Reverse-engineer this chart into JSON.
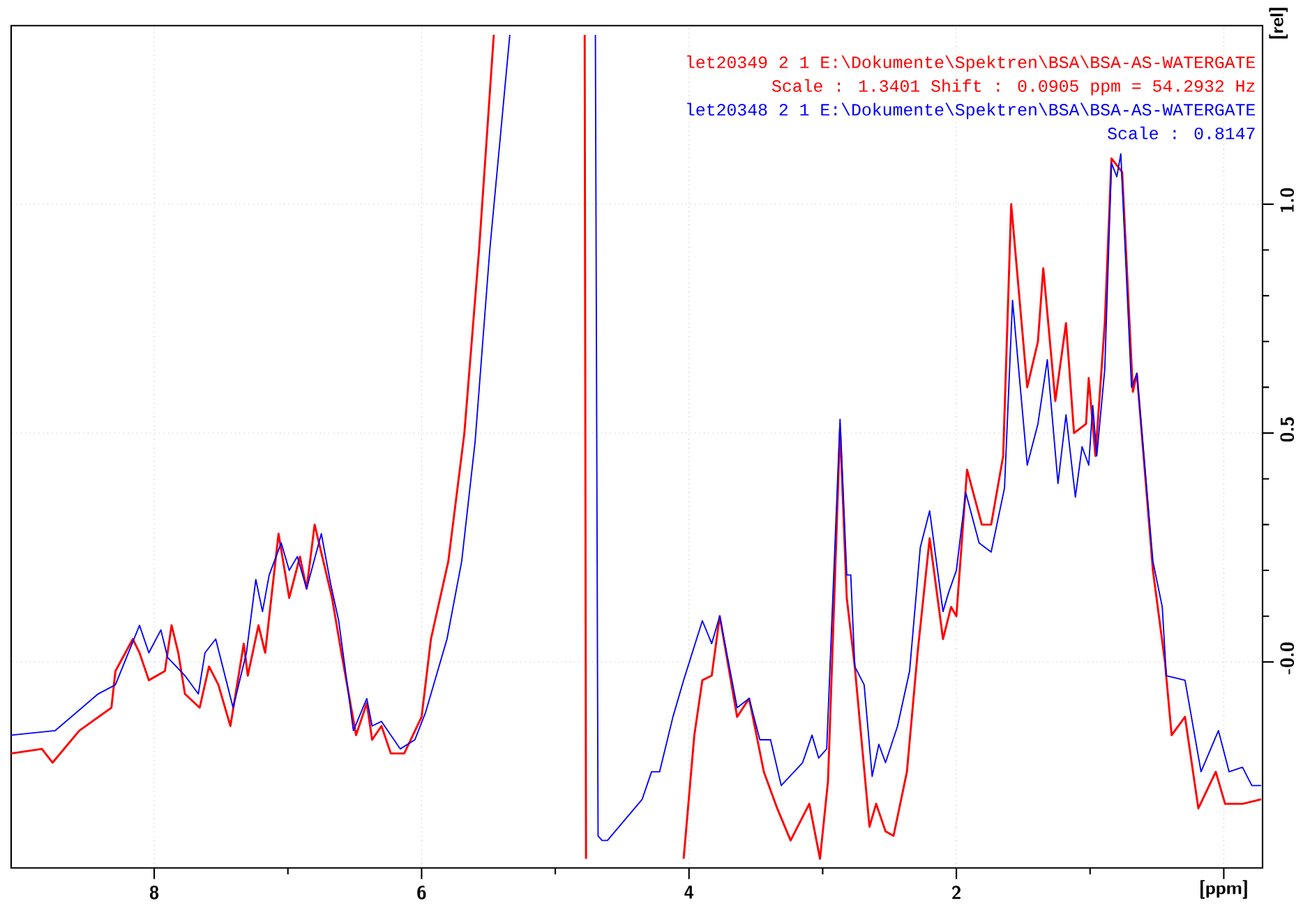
{
  "chart_data": {
    "type": "line",
    "xlabel": "[ppm]",
    "ylabel": "[rel]",
    "xlim": [
      9.07,
      -0.29
    ],
    "ylim": [
      -0.45,
      1.39
    ],
    "xticks": [
      8,
      6,
      4,
      2,
      {
        "value": 0,
        "label": null
      }
    ],
    "yticks": [
      {
        "value": 0,
        "label": "-0.0"
      },
      {
        "value": 0.5,
        "label": "0.5"
      },
      {
        "value": 1,
        "label": "1.0"
      }
    ],
    "grid": true,
    "legend": "top right",
    "line_style": "solid",
    "annotations": [
      "Scale : 1.3401 Shift : 0.0905 ppm = 54.2932 Hz",
      "Scale : 0.8147"
    ],
    "series": [
      {
        "name": "let20349  2  1  E:\\Dokumente\\Spektren\\BSA\\BSA-AS-WATERGATE",
        "color": "#ff0000",
        "x": [
          9.07,
          8.84,
          8.76,
          8.56,
          8.32,
          8.29,
          8.16,
          8.11,
          8.04,
          7.92,
          7.87,
          7.82,
          7.77,
          7.66,
          7.59,
          7.52,
          7.43,
          7.33,
          7.3,
          7.22,
          7.17,
          7.07,
          6.99,
          6.91,
          6.86,
          6.8,
          6.67,
          6.6,
          6.49,
          6.41,
          6.37,
          6.3,
          6.23,
          6.13,
          6.0,
          5.93,
          5.8,
          5.68,
          5.57,
          5.46,
          5.0,
          4.78,
          4.77,
          4.4,
          4.04,
          3.96,
          3.9,
          3.83,
          3.77,
          3.64,
          3.55,
          3.44,
          3.34,
          3.24,
          3.1,
          3.02,
          2.96,
          2.87,
          2.82,
          2.76,
          2.65,
          2.6,
          2.53,
          2.47,
          2.37,
          2.29,
          2.2,
          2.1,
          2.04,
          2.0,
          1.92,
          1.81,
          1.74,
          1.65,
          1.59,
          1.47,
          1.39,
          1.35,
          1.26,
          1.18,
          1.12,
          1.03,
          1.01,
          0.96,
          0.89,
          0.84,
          0.76,
          0.68,
          0.65,
          0.53,
          0.44,
          0.39,
          0.29,
          0.19,
          0.06,
          -0.01,
          -0.14,
          -0.28
        ],
        "values": [
          -0.2,
          -0.19,
          -0.22,
          -0.15,
          -0.1,
          -0.02,
          0.05,
          0.02,
          -0.04,
          -0.02,
          0.08,
          0.02,
          -0.07,
          -0.1,
          -0.01,
          -0.05,
          -0.14,
          0.04,
          -0.03,
          0.08,
          0.02,
          0.28,
          0.14,
          0.23,
          0.16,
          0.3,
          0.14,
          0.02,
          -0.16,
          -0.09,
          -0.17,
          -0.14,
          -0.2,
          -0.2,
          -0.12,
          0.05,
          0.22,
          0.5,
          0.9,
          1.37,
          null,
          1.37,
          -0.43,
          null,
          -0.43,
          -0.16,
          -0.04,
          -0.03,
          0.1,
          -0.12,
          -0.08,
          -0.24,
          -0.32,
          -0.39,
          -0.31,
          -0.43,
          -0.26,
          0.51,
          0.14,
          -0.01,
          -0.36,
          -0.31,
          -0.37,
          -0.38,
          -0.24,
          0.02,
          0.27,
          0.05,
          0.12,
          0.1,
          0.42,
          0.3,
          0.3,
          0.45,
          1.0,
          0.6,
          0.7,
          0.86,
          0.57,
          0.74,
          0.5,
          0.52,
          0.62,
          0.45,
          0.74,
          1.1,
          1.07,
          0.59,
          0.63,
          0.2,
          0.0,
          -0.16,
          -0.12,
          -0.32,
          -0.24,
          -0.31,
          -0.31,
          -0.3
        ]
      },
      {
        "name": "let20348  2  1  E:\\Dokumente\\Spektren\\BSA\\BSA-AS-WATERGATE",
        "color": "#0000ff",
        "x": [
          9.07,
          8.74,
          8.42,
          8.29,
          8.11,
          8.04,
          7.95,
          7.9,
          7.77,
          7.67,
          7.62,
          7.54,
          7.41,
          7.31,
          7.24,
          7.19,
          7.14,
          7.05,
          6.99,
          6.93,
          6.86,
          6.75,
          6.68,
          6.62,
          6.51,
          6.41,
          6.37,
          6.3,
          6.16,
          6.05,
          5.97,
          5.85,
          5.81,
          5.7,
          5.6,
          5.49,
          5.34,
          5.0,
          4.7,
          4.68,
          4.65,
          4.61,
          4.35,
          4.28,
          4.22,
          4.12,
          4.04,
          3.9,
          3.83,
          3.77,
          3.64,
          3.55,
          3.47,
          3.39,
          3.31,
          3.15,
          3.08,
          3.03,
          2.97,
          2.87,
          2.82,
          2.79,
          2.76,
          2.69,
          2.63,
          2.58,
          2.53,
          2.44,
          2.35,
          2.27,
          2.2,
          2.1,
          2.06,
          2.0,
          1.93,
          1.83,
          1.74,
          1.64,
          1.58,
          1.47,
          1.39,
          1.32,
          1.24,
          1.18,
          1.11,
          1.06,
          1.01,
          0.98,
          0.95,
          0.89,
          0.84,
          0.8,
          0.77,
          0.69,
          0.65,
          0.53,
          0.46,
          0.43,
          0.29,
          0.17,
          0.04,
          -0.04,
          -0.14,
          -0.21,
          -0.28
        ],
        "values": [
          -0.16,
          -0.15,
          -0.07,
          -0.05,
          0.08,
          0.02,
          0.07,
          0.01,
          -0.03,
          -0.07,
          0.02,
          0.05,
          -0.1,
          0.02,
          0.18,
          0.11,
          0.19,
          0.26,
          0.2,
          0.23,
          0.16,
          0.28,
          0.17,
          0.09,
          -0.15,
          -0.08,
          -0.14,
          -0.13,
          -0.19,
          -0.17,
          -0.11,
          0.01,
          0.05,
          0.22,
          0.48,
          0.9,
          1.37,
          null,
          1.37,
          -0.38,
          -0.39,
          -0.39,
          -0.3,
          -0.24,
          -0.24,
          -0.12,
          -0.04,
          0.09,
          0.04,
          0.1,
          -0.1,
          -0.08,
          -0.17,
          -0.17,
          -0.27,
          -0.22,
          -0.16,
          -0.21,
          -0.19,
          0.53,
          0.19,
          0.19,
          -0.01,
          -0.05,
          -0.25,
          -0.18,
          -0.22,
          -0.14,
          -0.02,
          0.25,
          0.33,
          0.11,
          0.15,
          0.2,
          0.37,
          0.26,
          0.24,
          0.38,
          0.79,
          0.43,
          0.52,
          0.66,
          0.39,
          0.54,
          0.36,
          0.47,
          0.43,
          0.56,
          0.45,
          0.64,
          1.09,
          1.06,
          1.11,
          0.6,
          0.63,
          0.22,
          0.12,
          -0.03,
          -0.04,
          -0.24,
          -0.15,
          -0.24,
          -0.23,
          -0.27,
          -0.27
        ]
      }
    ]
  }
}
